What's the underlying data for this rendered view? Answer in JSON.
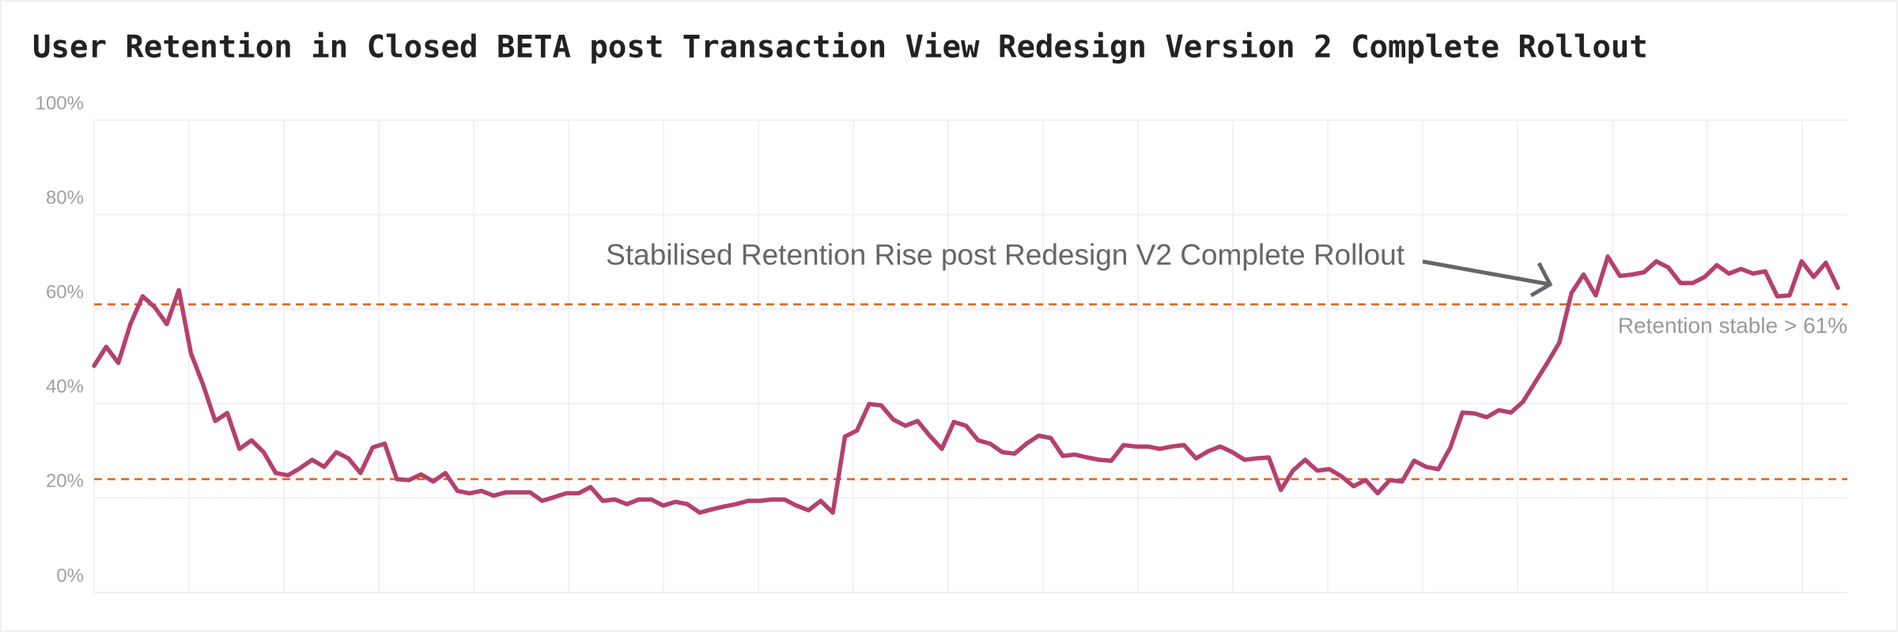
{
  "chart_data": {
    "type": "line",
    "title": "User Retention in Closed BETA post Transaction View Redesign Version 2 Complete Rollout",
    "annotations": [
      "Stabilised Retention Rise post Redesign V2 Complete Rollout",
      "Retention stable > 61%"
    ],
    "ylim": [
      0,
      100
    ],
    "yticks": [
      {
        "value": 0,
        "label": "0%"
      },
      {
        "value": 20,
        "label": "20%"
      },
      {
        "value": 40,
        "label": "40%"
      },
      {
        "value": 60,
        "label": "60%"
      },
      {
        "value": 80,
        "label": "80%"
      },
      {
        "value": 100,
        "label": "100%"
      }
    ],
    "grid": true,
    "reference_lines": [
      {
        "value": 61,
        "color": "#e0601f"
      },
      {
        "value": 24,
        "color": "#e0601f"
      }
    ],
    "series": [
      {
        "name": "User Retention",
        "color": "#b5406e",
        "values": [
          48,
          52,
          48.6,
          56.8,
          62.7,
          60.4,
          56.8,
          64,
          50.6,
          44,
          36.3,
          38,
          30.4,
          32.2,
          29.7,
          25.3,
          24.8,
          26.3,
          28.1,
          26.6,
          29.7,
          28.4,
          25.3,
          30.7,
          31.5,
          24,
          23.8,
          25,
          23.5,
          25.3,
          21.5,
          21,
          21.5,
          20.5,
          21.2,
          21.2,
          21.2,
          19.4,
          20.2,
          21,
          21,
          22.3,
          19.4,
          19.7,
          18.7,
          19.7,
          19.7,
          18.4,
          19.2,
          18.7,
          16.9,
          17.6,
          18.2,
          18.7,
          19.4,
          19.4,
          19.7,
          19.7,
          18.4,
          17.4,
          19.4,
          16.9,
          33,
          34.3,
          39.9,
          39.6,
          36.6,
          35.3,
          36.3,
          33.2,
          30.4,
          36.1,
          35.3,
          32.2,
          31.5,
          29.7,
          29.4,
          31.5,
          33.2,
          32.7,
          28.9,
          29.2,
          28.6,
          28.1,
          27.9,
          31.2,
          30.9,
          30.9,
          30.4,
          30.9,
          31.2,
          28.4,
          29.9,
          30.9,
          29.7,
          28.1,
          28.4,
          28.6,
          21.7,
          25.8,
          28.1,
          25.8,
          26.1,
          24.6,
          22.5,
          23.8,
          21,
          23.8,
          23.5,
          27.9,
          26.6,
          26.1,
          30.7,
          38.1,
          37.9,
          37.1,
          38.6,
          38.1,
          40.4,
          44.5,
          48.6,
          52.9,
          63.4,
          67.3,
          62.9,
          71.1,
          67,
          67.3,
          67.8,
          70.1,
          68.8,
          65.5,
          65.5,
          66.8,
          69.3,
          67.5,
          68.5,
          67.5,
          68,
          62.7,
          62.9,
          70.1,
          66.8,
          69.8,
          64.5
        ]
      }
    ]
  }
}
